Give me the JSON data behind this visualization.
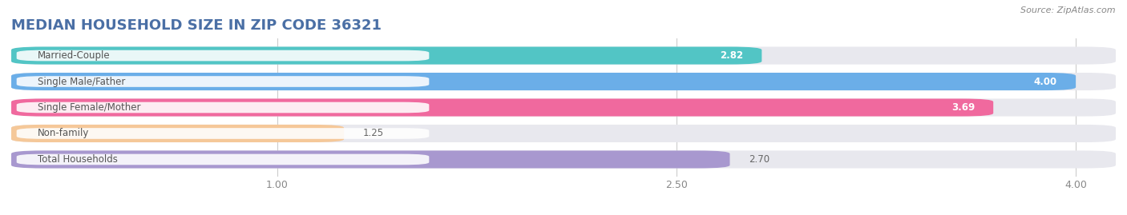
{
  "title": "MEDIAN HOUSEHOLD SIZE IN ZIP CODE 36321",
  "source": "Source: ZipAtlas.com",
  "categories": [
    "Married-Couple",
    "Single Male/Father",
    "Single Female/Mother",
    "Non-family",
    "Total Households"
  ],
  "values": [
    2.82,
    4.0,
    3.69,
    1.25,
    2.7
  ],
  "bar_colors": [
    "#52C5C5",
    "#6BAEE8",
    "#F0699E",
    "#F5C899",
    "#A898CF"
  ],
  "bar_bg_color": "#E8E8EE",
  "value_colors": [
    "#FFFFFF",
    "#FFFFFF",
    "#FFFFFF",
    "#666666",
    "#666666"
  ],
  "value_inside": [
    true,
    true,
    true,
    false,
    false
  ],
  "xlim_left": 0,
  "xlim_right": 4.15,
  "xticks": [
    1.0,
    2.5,
    4.0
  ],
  "xtick_labels": [
    "1.00",
    "2.50",
    "4.00"
  ],
  "title_color": "#4A6FA5",
  "source_color": "#888888",
  "title_fontsize": 13,
  "bar_height": 0.68,
  "background_color": "#FFFFFF",
  "label_bg_color": "#FFFFFF",
  "label_text_color": "#555555",
  "grid_color": "#CCCCCC"
}
